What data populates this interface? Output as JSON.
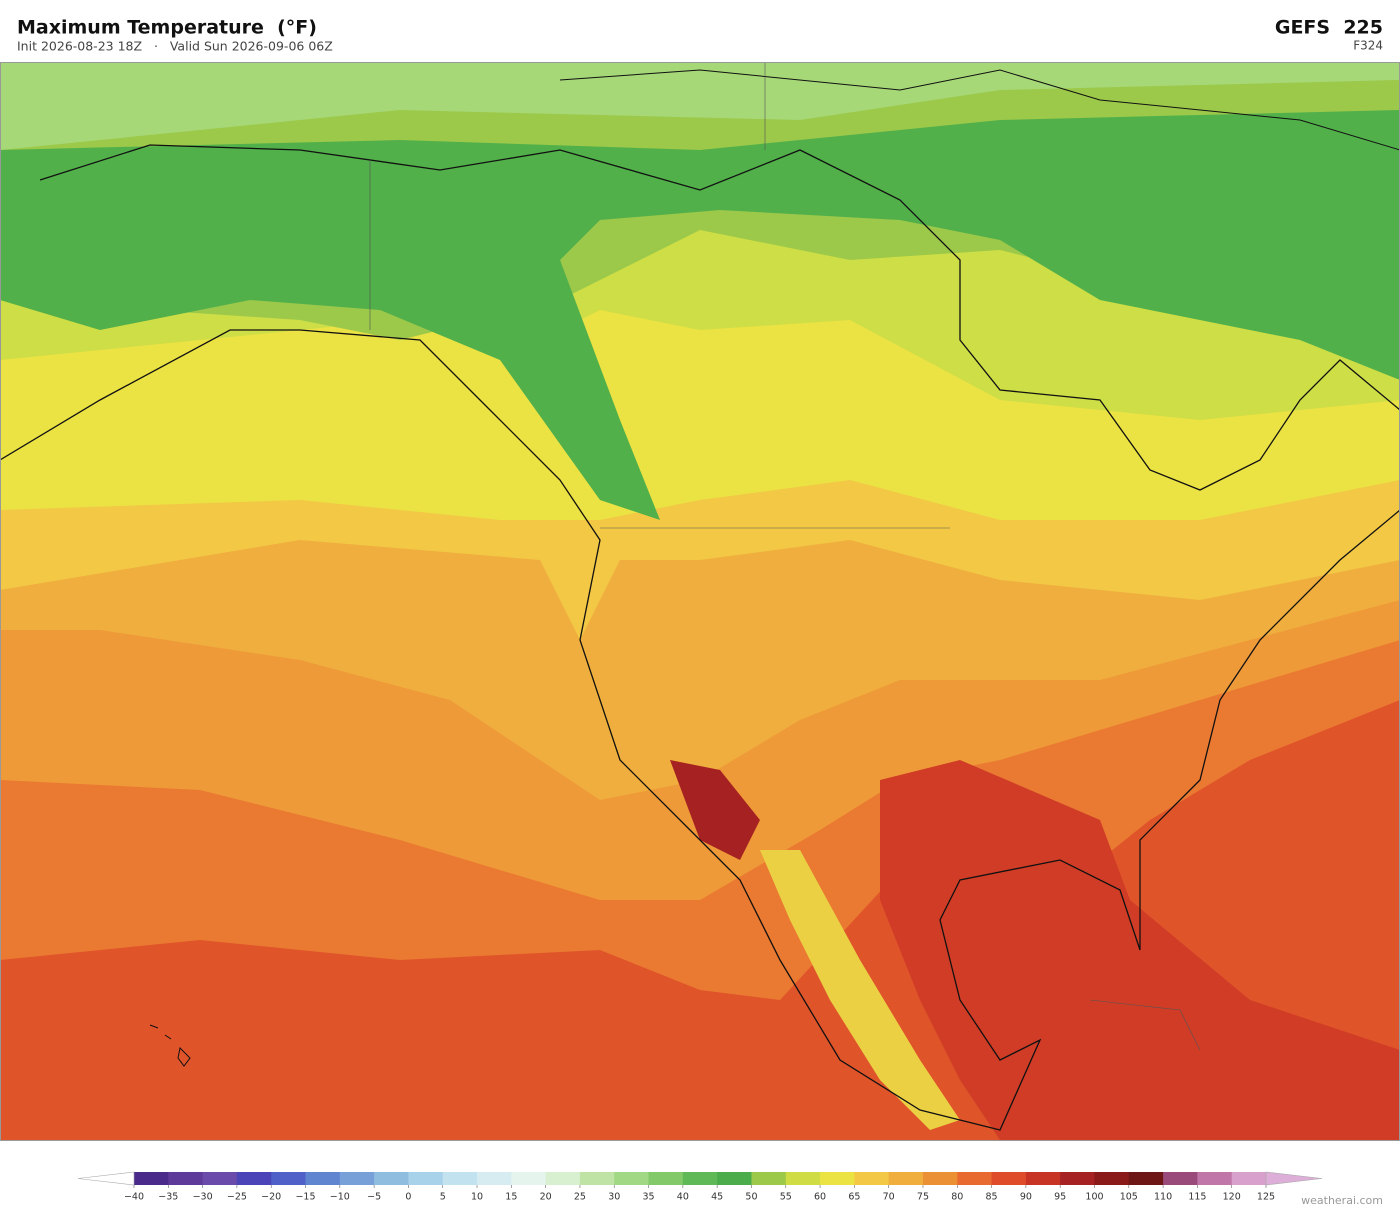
{
  "header": {
    "title": "Maximum Temperature  (°F)",
    "subtitle": "Init 2026-08-23 18Z   ·   Valid Sun 2026-09-06 06Z",
    "model": "GEFS  225",
    "forecast_hour": "F324"
  },
  "colorbar": {
    "ticks": [
      {
        "value": -40,
        "label": "−40"
      },
      {
        "value": -35,
        "label": "−35"
      },
      {
        "value": -30,
        "label": "−30"
      },
      {
        "value": -25,
        "label": "−25"
      },
      {
        "value": -20,
        "label": "−20"
      },
      {
        "value": -15,
        "label": "−15"
      },
      {
        "value": -10,
        "label": "−10"
      },
      {
        "value": -5,
        "label": "−5"
      },
      0,
      5,
      10,
      15,
      20,
      25,
      30,
      35,
      40,
      45,
      50,
      55,
      60,
      65,
      70,
      75,
      80,
      85,
      90,
      95,
      100,
      105,
      110,
      115,
      120,
      125
    ],
    "colors": [
      "#4a2a8a",
      "#5e3a9a",
      "#6a4aaa",
      "#4a44b8",
      "#4f61c8",
      "#5f84d0",
      "#78a0d8",
      "#8fbde0",
      "#a8d2ea",
      "#c2e2ef",
      "#d6ecf0",
      "#e6f4ee",
      "#d8efd0",
      "#bfe3a4",
      "#a1d884",
      "#82c96a",
      "#5fb956",
      "#4aac4a",
      "#9cc94a",
      "#d0dc44",
      "#ebe244",
      "#f2c845",
      "#f0ae3e",
      "#ec9035",
      "#e86a30",
      "#de4c2a",
      "#c83424",
      "#a62222",
      "#8a1a1a",
      "#6e1616",
      "#9a4a7a",
      "#c076a8",
      "#d8a0cc"
    ],
    "under_color": "#ffffff",
    "over_color": "#dcaed8"
  },
  "footer": {
    "watermark": "weatherai.com"
  }
}
